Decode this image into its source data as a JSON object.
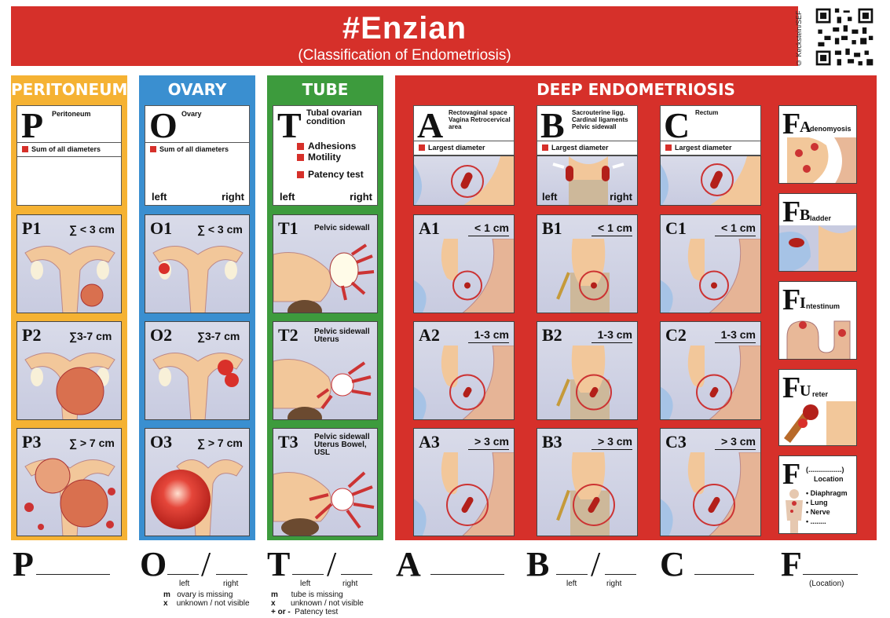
{
  "header": {
    "title": "#Enzian",
    "subtitle": "(Classification of Endometriosis)",
    "copyright": "© Keckstein/SEF"
  },
  "colors": {
    "red": "#d6302a",
    "peritoneum": "#f5b233",
    "ovary": "#3a8fd0",
    "tube": "#3d9b3d",
    "tissue": "#f2c79a"
  },
  "peritoneum": {
    "heading": "PERITONEUM",
    "letter": "P",
    "desc": "Peritoneum",
    "legend": "Sum of all diameters",
    "stages": [
      {
        "label": "P1",
        "range": "∑ < 3 cm"
      },
      {
        "label": "P2",
        "range": "∑3-7 cm"
      },
      {
        "label": "P3",
        "range": "∑ > 7 cm"
      }
    ]
  },
  "ovary": {
    "heading": "OVARY",
    "letter": "O",
    "desc": "Ovary",
    "legend": "Sum of all diameters",
    "left": "left",
    "right": "right",
    "stages": [
      {
        "label": "O1",
        "range": "∑ < 3 cm"
      },
      {
        "label": "O2",
        "range": "∑3-7 cm"
      },
      {
        "label": "O3",
        "range": "∑ > 7 cm"
      }
    ]
  },
  "tube": {
    "heading": "TUBE",
    "letter": "T",
    "desc": "Tubal ovarian condition",
    "items": [
      "Adhesions",
      "Motility",
      "Patency test"
    ],
    "left": "left",
    "right": "right",
    "stages": [
      {
        "label": "T1",
        "desc": "Pelvic sidewall"
      },
      {
        "label": "T2",
        "desc": "Pelvic sidewall Uterus"
      },
      {
        "label": "T3",
        "desc": "Pelvic sidewall Uterus Bowel, USL"
      }
    ]
  },
  "deep": {
    "heading": "DEEP ENDOMETRIOSIS",
    "legend": "Largest diameter",
    "A": {
      "letter": "A",
      "desc": "Rectovaginal space Vagina Retrocervical area",
      "stages": [
        {
          "label": "A1",
          "range": "< 1 cm"
        },
        {
          "label": "A2",
          "range": "1-3 cm"
        },
        {
          "label": "A3",
          "range": "> 3 cm"
        }
      ]
    },
    "B": {
      "letter": "B",
      "desc": "Sacrouterine ligg. Cardinal ligaments Pelvic sidewall",
      "left": "left",
      "right": "right",
      "stages": [
        {
          "label": "B1",
          "range": "< 1 cm"
        },
        {
          "label": "B2",
          "range": "1-3 cm"
        },
        {
          "label": "B3",
          "range": "> 3 cm"
        }
      ]
    },
    "C": {
      "letter": "C",
      "desc": "Rectum",
      "stages": [
        {
          "label": "C1",
          "range": "< 1 cm"
        },
        {
          "label": "C2",
          "range": "1-3 cm"
        },
        {
          "label": "C3",
          "range": "> 3 cm"
        }
      ]
    },
    "F": [
      {
        "letter": "F",
        "sub": "A",
        "rest": "denomyosis"
      },
      {
        "letter": "F",
        "sub": "B",
        "rest": "ladder"
      },
      {
        "letter": "F",
        "sub": "I",
        "rest": "ntestinum"
      },
      {
        "letter": "F",
        "sub": "U",
        "rest": "reter"
      }
    ],
    "Fother": {
      "letter": "F",
      "dots": "(.................)",
      "loc": "Location",
      "items": [
        "Diaphragm",
        "Lung",
        "Nerve",
        "........"
      ]
    }
  },
  "bottom": {
    "P": "P",
    "O": "O",
    "T": "T",
    "A": "A",
    "B": "B",
    "C": "C",
    "F": "F",
    "left": "left",
    "right": "right",
    "location": "(Location)",
    "ovary_notes": [
      {
        "k": "m",
        "v": "ovary is missing"
      },
      {
        "k": "x",
        "v": "unknown / not visible"
      }
    ],
    "tube_notes": [
      {
        "k": "m",
        "v": "tube is missing"
      },
      {
        "k": "x",
        "v": "unknown / not visible"
      },
      {
        "k": "+ or -",
        "v": "Patency test"
      }
    ]
  }
}
